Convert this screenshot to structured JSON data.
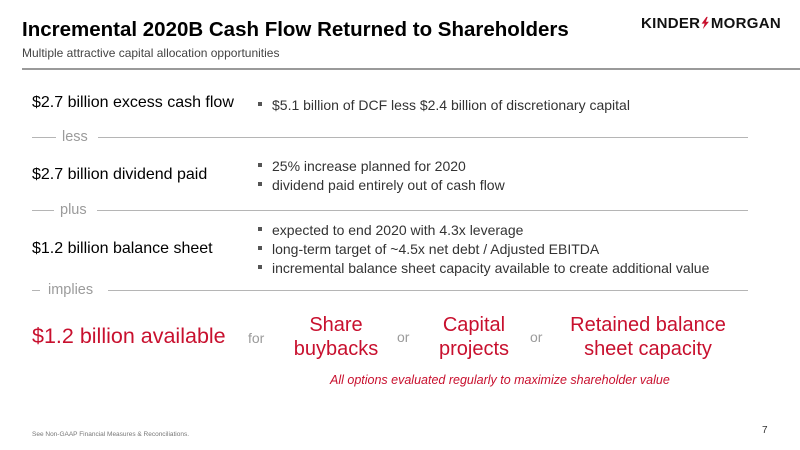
{
  "header": {
    "title": "Incremental 2020B Cash Flow Returned to Shareholders",
    "subtitle": "Multiple attractive capital allocation opportunities",
    "logo_left": "KINDER",
    "logo_right": "MORGAN",
    "logo_icon": "lightning-bolt-icon"
  },
  "rows": [
    {
      "label": "$2.7 billion excess cash flow",
      "bullets": [
        "$5.1 billion of DCF less $2.4 billion of discretionary capital"
      ]
    },
    {
      "label": "$2.7 billion dividend paid",
      "bullets": [
        "25% increase planned for 2020",
        "dividend paid entirely out of cash flow"
      ]
    },
    {
      "label": "$1.2 billion balance sheet",
      "bullets": [
        "expected to end 2020 with 4.3x leverage",
        "long-term target of ~4.5x net debt / Adjusted EBITDA",
        "incremental balance sheet capacity available to create additional value"
      ]
    }
  ],
  "separators": [
    "less",
    "plus",
    "implies"
  ],
  "result": {
    "available": "$1.2 billion available",
    "for": "for",
    "or": "or",
    "options": [
      {
        "line1": "Share",
        "line2": "buybacks"
      },
      {
        "line1": "Capital",
        "line2": "projects"
      },
      {
        "line1": "Retained balance",
        "line2": "sheet capacity"
      }
    ],
    "note": "All options evaluated regularly to maximize shareholder value"
  },
  "footer": {
    "footnote": "See Non-GAAP Financial Measures & Reconciliations.",
    "page": "7"
  },
  "colors": {
    "accent_red": "#c8102e",
    "muted_gray": "#9b9b9b"
  }
}
